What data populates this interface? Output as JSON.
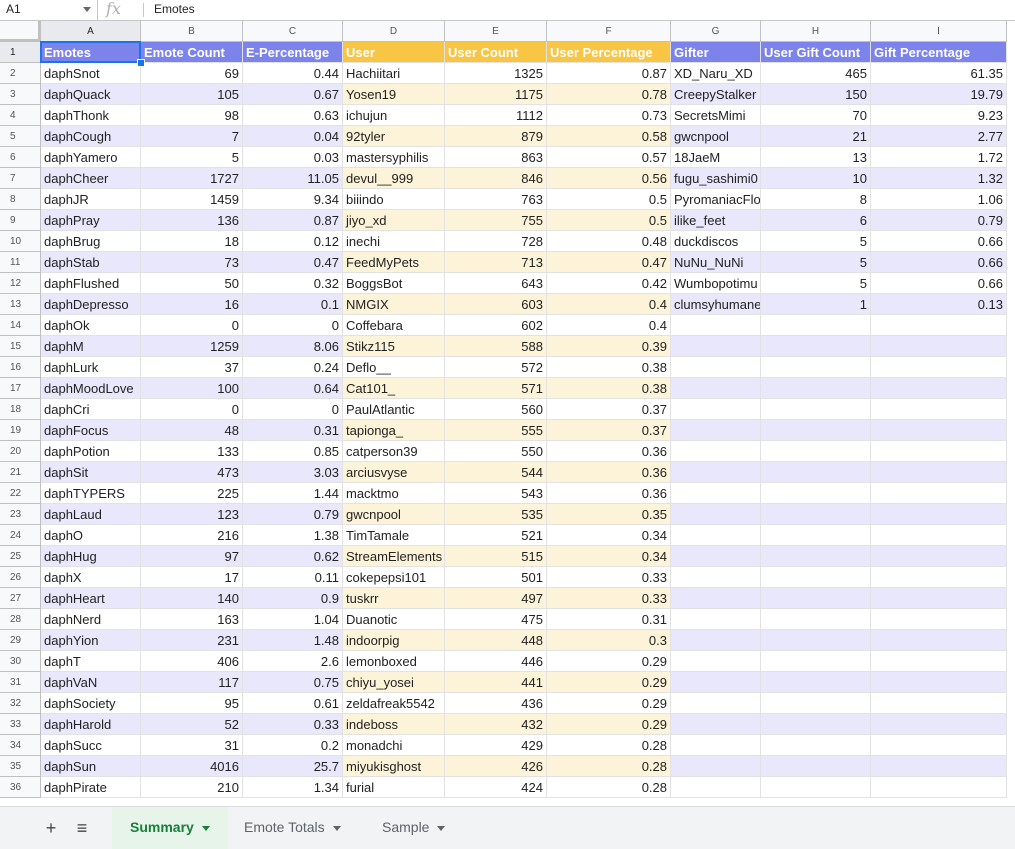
{
  "formula_bar": {
    "name_box": "A1",
    "fx_label": "fx",
    "value": "Emotes"
  },
  "columns": [
    "A",
    "B",
    "C",
    "D",
    "E",
    "F",
    "G",
    "H",
    "I"
  ],
  "headers": [
    "Emotes",
    "Emote Count",
    "E-Percentage",
    "User",
    "User Count",
    "User Percentage",
    "Gifter",
    "User Gift Count",
    "Gift Percentage"
  ],
  "colors": {
    "emote_header": "#7c83ea",
    "emote_band": "#e8e7fb",
    "user_header": "#f8c544",
    "user_band": "#fdf3d8",
    "gift_header": "#7c83ea",
    "gift_band": "#e8e7fb",
    "selection": "#1a73e8",
    "active_tab": "#188038"
  },
  "rows": [
    [
      "daphSnot",
      "69",
      "0.44",
      "Hachiitari",
      "1325",
      "0.87",
      "XD_Naru_XD",
      "465",
      "61.35"
    ],
    [
      "daphQuack",
      "105",
      "0.67",
      "Yosen19",
      "1175",
      "0.78",
      "CreepyStalker",
      "150",
      "19.79"
    ],
    [
      "daphThonk",
      "98",
      "0.63",
      "ichujun",
      "1112",
      "0.73",
      "SecretsMimi",
      "70",
      "9.23"
    ],
    [
      "daphCough",
      "7",
      "0.04",
      "92tyler",
      "879",
      "0.58",
      "gwcnpool",
      "21",
      "2.77"
    ],
    [
      "daphYamero",
      "5",
      "0.03",
      "mastersyphilis",
      "863",
      "0.57",
      "18JaeM",
      "13",
      "1.72"
    ],
    [
      "daphCheer",
      "1727",
      "11.05",
      "devul__999",
      "846",
      "0.56",
      "fugu_sashimi0",
      "10",
      "1.32"
    ],
    [
      "daphJR",
      "1459",
      "9.34",
      "biiindo",
      "763",
      "0.5",
      "PyromaniacFlo",
      "8",
      "1.06"
    ],
    [
      "daphPray",
      "136",
      "0.87",
      "jiyo_xd",
      "755",
      "0.5",
      "ilike_feet",
      "6",
      "0.79"
    ],
    [
      "daphBrug",
      "18",
      "0.12",
      "inechi",
      "728",
      "0.48",
      "duckdiscos",
      "5",
      "0.66"
    ],
    [
      "daphStab",
      "73",
      "0.47",
      "FeedMyPets",
      "713",
      "0.47",
      "NuNu_NuNi",
      "5",
      "0.66"
    ],
    [
      "daphFlushed",
      "50",
      "0.32",
      "BoggsBot",
      "643",
      "0.42",
      "Wumbopotimu",
      "5",
      "0.66"
    ],
    [
      "daphDepresso",
      "16",
      "0.1",
      "NMGIX",
      "603",
      "0.4",
      "clumsyhumane",
      "1",
      "0.13"
    ],
    [
      "daphOk",
      "0",
      "0",
      "Coffebara",
      "602",
      "0.4",
      "",
      "",
      ""
    ],
    [
      "daphM",
      "1259",
      "8.06",
      "Stikz115",
      "588",
      "0.39",
      "",
      "",
      ""
    ],
    [
      "daphLurk",
      "37",
      "0.24",
      "Deflo__",
      "572",
      "0.38",
      "",
      "",
      ""
    ],
    [
      "daphMoodLove",
      "100",
      "0.64",
      "Cat101_",
      "571",
      "0.38",
      "",
      "",
      ""
    ],
    [
      "daphCri",
      "0",
      "0",
      "PaulAtlantic",
      "560",
      "0.37",
      "",
      "",
      ""
    ],
    [
      "daphFocus",
      "48",
      "0.31",
      "tapionga_",
      "555",
      "0.37",
      "",
      "",
      ""
    ],
    [
      "daphPotion",
      "133",
      "0.85",
      "catperson39",
      "550",
      "0.36",
      "",
      "",
      ""
    ],
    [
      "daphSit",
      "473",
      "3.03",
      "arciusvyse",
      "544",
      "0.36",
      "",
      "",
      ""
    ],
    [
      "daphTYPERS",
      "225",
      "1.44",
      "macktmo",
      "543",
      "0.36",
      "",
      "",
      ""
    ],
    [
      "daphLaud",
      "123",
      "0.79",
      "gwcnpool",
      "535",
      "0.35",
      "",
      "",
      ""
    ],
    [
      "daphO",
      "216",
      "1.38",
      "TimTamale",
      "521",
      "0.34",
      "",
      "",
      ""
    ],
    [
      "daphHug",
      "97",
      "0.62",
      "StreamElements",
      "515",
      "0.34",
      "",
      "",
      ""
    ],
    [
      "daphX",
      "17",
      "0.11",
      "cokepepsi101",
      "501",
      "0.33",
      "",
      "",
      ""
    ],
    [
      "daphHeart",
      "140",
      "0.9",
      "tuskrr",
      "497",
      "0.33",
      "",
      "",
      ""
    ],
    [
      "daphNerd",
      "163",
      "1.04",
      "Duanotic",
      "475",
      "0.31",
      "",
      "",
      ""
    ],
    [
      "daphYion",
      "231",
      "1.48",
      "indoorpig",
      "448",
      "0.3",
      "",
      "",
      ""
    ],
    [
      "daphT",
      "406",
      "2.6",
      "lemonboxed",
      "446",
      "0.29",
      "",
      "",
      ""
    ],
    [
      "daphVaN",
      "117",
      "0.75",
      "chiyu_yosei",
      "441",
      "0.29",
      "",
      "",
      ""
    ],
    [
      "daphSociety",
      "95",
      "0.61",
      "zeldafreak5542",
      "436",
      "0.29",
      "",
      "",
      ""
    ],
    [
      "daphHarold",
      "52",
      "0.33",
      "indeboss",
      "432",
      "0.29",
      "",
      "",
      ""
    ],
    [
      "daphSucc",
      "31",
      "0.2",
      "monadchi",
      "429",
      "0.28",
      "",
      "",
      ""
    ],
    [
      "daphSun",
      "4016",
      "25.7",
      "miyukisghost",
      "426",
      "0.28",
      "",
      "",
      ""
    ],
    [
      "daphPirate",
      "210",
      "1.34",
      "furial",
      "424",
      "0.28",
      "",
      "",
      ""
    ]
  ],
  "tabs": [
    {
      "label": "Summary",
      "active": true
    },
    {
      "label": "Emote Totals",
      "active": false
    },
    {
      "label": "Sample",
      "active": false
    }
  ],
  "icons": {
    "add_sheet": "plus-icon",
    "all_sheets": "list-icon"
  }
}
